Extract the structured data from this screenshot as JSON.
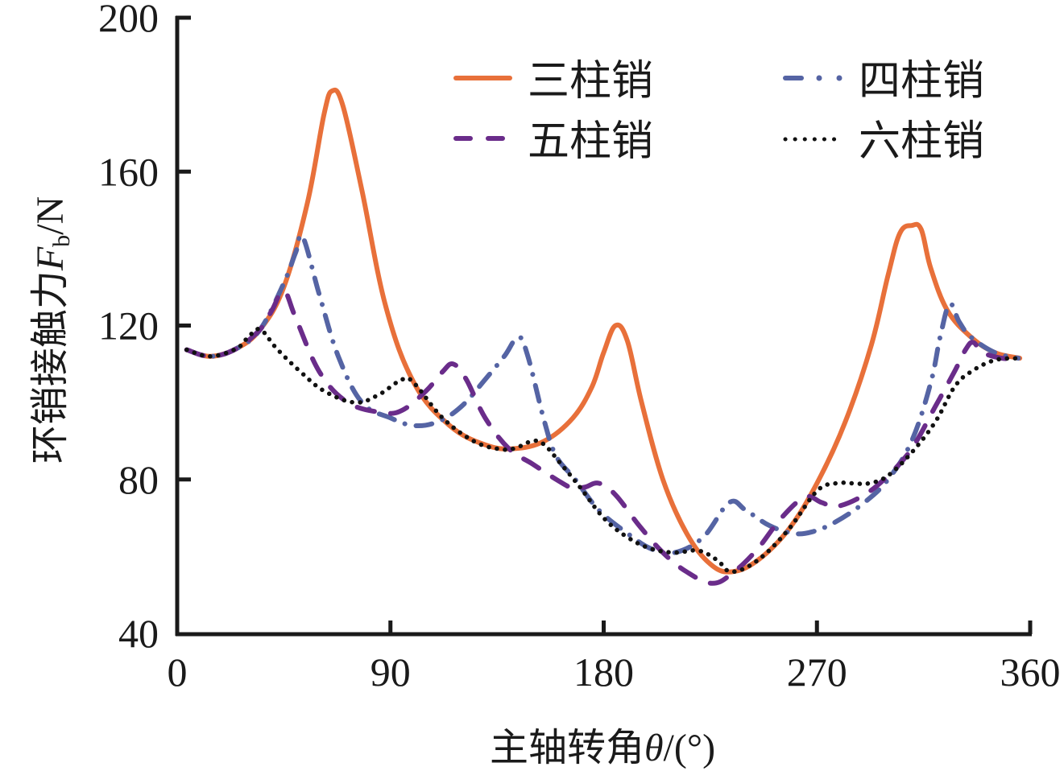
{
  "chart_data": {
    "type": "line",
    "title": "",
    "xlabel": {
      "prefix": "主轴转角",
      "symbol": "θ",
      "suffix": "/(°)"
    },
    "ylabel": {
      "prefix": "环销接触力",
      "symbol": "F",
      "subscript": "b",
      "suffix": "/N"
    },
    "xlim": [
      0,
      360
    ],
    "ylim": [
      40,
      200
    ],
    "xticks": [
      0,
      90,
      180,
      270,
      360
    ],
    "yticks": [
      40,
      80,
      120,
      160,
      200
    ],
    "xtick_labels": [
      "0",
      "90",
      "180",
      "270",
      "360"
    ],
    "ytick_labels": [
      "40",
      "80",
      "120",
      "160",
      "200"
    ],
    "grid": false,
    "legend_position": "top-right",
    "series": [
      {
        "name": "三柱销",
        "color": "#E8703A",
        "style": "solid",
        "points": [
          [
            4,
            113.7
          ],
          [
            14,
            112
          ],
          [
            25,
            114
          ],
          [
            35,
            119
          ],
          [
            45,
            130
          ],
          [
            55,
            152
          ],
          [
            62,
            175
          ],
          [
            65.5,
            181
          ],
          [
            70,
            177
          ],
          [
            78,
            155
          ],
          [
            88,
            125
          ],
          [
            100,
            105
          ],
          [
            115,
            94
          ],
          [
            130,
            89
          ],
          [
            142,
            88
          ],
          [
            155,
            90
          ],
          [
            167,
            96
          ],
          [
            175,
            104
          ],
          [
            180,
            113
          ],
          [
            185,
            120
          ],
          [
            190,
            116
          ],
          [
            196,
            100
          ],
          [
            205,
            80
          ],
          [
            215,
            66
          ],
          [
            225,
            58
          ],
          [
            234,
            56
          ],
          [
            245,
            59
          ],
          [
            258,
            67
          ],
          [
            270,
            79
          ],
          [
            282,
            95
          ],
          [
            293,
            115
          ],
          [
            300,
            133
          ],
          [
            305,
            144
          ],
          [
            310,
            146
          ],
          [
            314,
            145
          ],
          [
            318,
            135
          ],
          [
            325,
            124
          ],
          [
            335,
            117
          ],
          [
            345,
            113
          ],
          [
            355.6,
            111.5
          ]
        ]
      },
      {
        "name": "四柱销",
        "color": "#5564A4",
        "style": "dashdot",
        "points": [
          [
            4,
            113.7
          ],
          [
            14,
            112
          ],
          [
            25,
            114
          ],
          [
            35,
            119
          ],
          [
            45,
            131
          ],
          [
            50,
            139
          ],
          [
            53,
            143
          ],
          [
            60,
            128
          ],
          [
            68,
            112
          ],
          [
            78,
            100
          ],
          [
            90,
            96
          ],
          [
            100,
            94
          ],
          [
            110,
            95
          ],
          [
            120,
            99
          ],
          [
            130,
            106
          ],
          [
            138,
            112
          ],
          [
            144,
            117
          ],
          [
            148,
            112
          ],
          [
            155,
            95
          ],
          [
            160,
            86
          ],
          [
            168,
            80
          ],
          [
            178,
            72
          ],
          [
            190,
            66
          ],
          [
            200,
            62
          ],
          [
            210,
            61
          ],
          [
            222,
            65
          ],
          [
            233,
            74
          ],
          [
            240,
            72
          ],
          [
            250,
            68
          ],
          [
            260,
            66
          ],
          [
            268,
            66.4
          ],
          [
            278,
            69
          ],
          [
            290,
            74
          ],
          [
            300,
            80
          ],
          [
            310,
            90
          ],
          [
            318,
            105
          ],
          [
            322,
            117
          ],
          [
            326,
            125.6
          ],
          [
            330,
            121
          ],
          [
            335,
            117
          ],
          [
            345,
            113
          ],
          [
            355,
            111.5
          ]
        ]
      },
      {
        "name": "五柱销",
        "color": "#6A2C8A",
        "style": "dashed",
        "points": [
          [
            4,
            113.7
          ],
          [
            14,
            112
          ],
          [
            25,
            114
          ],
          [
            35,
            119
          ],
          [
            40,
            124
          ],
          [
            45,
            129
          ],
          [
            50,
            122
          ],
          [
            60,
            108
          ],
          [
            72,
            100
          ],
          [
            86.6,
            97.4
          ],
          [
            95,
            98
          ],
          [
            105,
            103
          ],
          [
            112,
            108
          ],
          [
            116.5,
            110
          ],
          [
            122,
            106
          ],
          [
            130,
            96
          ],
          [
            140,
            88
          ],
          [
            150,
            84
          ],
          [
            160,
            80
          ],
          [
            167,
            77.7
          ],
          [
            172,
            78
          ],
          [
            178,
            79
          ],
          [
            185,
            76
          ],
          [
            195,
            68
          ],
          [
            205,
            61
          ],
          [
            215,
            56
          ],
          [
            226,
            53
          ],
          [
            235,
            56
          ],
          [
            245,
            62
          ],
          [
            255,
            70
          ],
          [
            265,
            75.4
          ],
          [
            272,
            74
          ],
          [
            278.5,
            73
          ],
          [
            290,
            76
          ],
          [
            300,
            81
          ],
          [
            310,
            88
          ],
          [
            320,
            99
          ],
          [
            328,
            108
          ],
          [
            333,
            114
          ],
          [
            336,
            115.6
          ],
          [
            340,
            113
          ],
          [
            348,
            111.5
          ],
          [
            355,
            111.5
          ]
        ]
      },
      {
        "name": "六柱销",
        "color": "#111111",
        "style": "dotted",
        "points": [
          [
            4,
            113.7
          ],
          [
            14,
            112
          ],
          [
            25,
            114
          ],
          [
            30,
            117
          ],
          [
            35,
            119
          ],
          [
            42,
            114
          ],
          [
            52,
            108
          ],
          [
            62,
            103
          ],
          [
            75,
            100
          ],
          [
            85,
            102
          ],
          [
            95,
            106
          ],
          [
            100,
            105
          ],
          [
            112,
            96
          ],
          [
            125,
            90
          ],
          [
            135,
            88
          ],
          [
            142,
            88
          ],
          [
            150,
            90
          ],
          [
            155,
            89
          ],
          [
            162,
            84
          ],
          [
            170,
            78
          ],
          [
            180,
            70
          ],
          [
            190,
            65
          ],
          [
            200,
            62
          ],
          [
            210,
            61
          ],
          [
            220,
            61.5
          ],
          [
            228,
            59
          ],
          [
            234,
            56
          ],
          [
            245,
            59
          ],
          [
            258,
            67
          ],
          [
            270,
            77
          ],
          [
            278,
            79
          ],
          [
            285,
            79
          ],
          [
            292,
            79
          ],
          [
            300,
            81
          ],
          [
            310,
            87
          ],
          [
            320,
            95
          ],
          [
            328,
            104
          ],
          [
            335,
            108
          ],
          [
            345,
            111
          ],
          [
            355,
            111.5
          ]
        ]
      }
    ]
  }
}
